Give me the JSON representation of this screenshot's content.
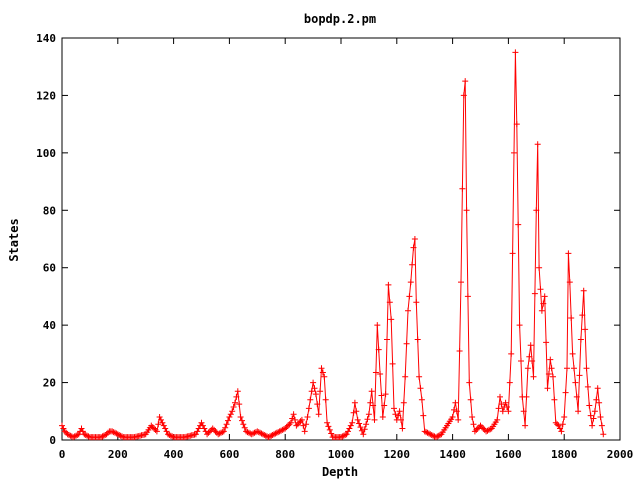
{
  "chart_data": {
    "type": "line",
    "title": "bopdp.2.pm",
    "xlabel": "Depth",
    "ylabel": "States",
    "xlim": [
      0,
      2000
    ],
    "ylim": [
      0,
      140
    ],
    "xticks": [
      "0",
      "200",
      "400",
      "600",
      "800",
      "1000",
      "1200",
      "1400",
      "1600",
      "1800",
      "2000"
    ],
    "yticks": [
      "0",
      "20",
      "40",
      "60",
      "80",
      "100",
      "120",
      "140"
    ],
    "grid": false,
    "legend": "none",
    "marker": "plus",
    "color": "#ff0000",
    "peaks": [
      [
        0,
        5
      ],
      [
        10,
        3
      ],
      [
        20,
        2
      ],
      [
        40,
        1
      ],
      [
        60,
        2
      ],
      [
        70,
        4
      ],
      [
        80,
        2
      ],
      [
        100,
        1
      ],
      [
        140,
        1
      ],
      [
        160,
        2
      ],
      [
        170,
        3
      ],
      [
        180,
        3
      ],
      [
        200,
        2
      ],
      [
        220,
        1
      ],
      [
        260,
        1
      ],
      [
        300,
        2
      ],
      [
        320,
        5
      ],
      [
        340,
        3
      ],
      [
        350,
        8
      ],
      [
        360,
        6
      ],
      [
        380,
        2
      ],
      [
        400,
        1
      ],
      [
        440,
        1
      ],
      [
        480,
        2
      ],
      [
        500,
        6
      ],
      [
        510,
        4
      ],
      [
        520,
        2
      ],
      [
        540,
        4
      ],
      [
        560,
        2
      ],
      [
        580,
        3
      ],
      [
        600,
        8
      ],
      [
        610,
        10
      ],
      [
        620,
        13
      ],
      [
        630,
        17
      ],
      [
        640,
        8
      ],
      [
        660,
        3
      ],
      [
        680,
        2
      ],
      [
        700,
        3
      ],
      [
        720,
        2
      ],
      [
        740,
        1
      ],
      [
        760,
        2
      ],
      [
        780,
        3
      ],
      [
        800,
        4
      ],
      [
        820,
        6
      ],
      [
        830,
        9
      ],
      [
        840,
        5
      ],
      [
        860,
        7
      ],
      [
        870,
        3
      ],
      [
        880,
        8
      ],
      [
        890,
        14
      ],
      [
        900,
        20
      ],
      [
        910,
        16
      ],
      [
        920,
        9
      ],
      [
        930,
        25
      ],
      [
        940,
        22
      ],
      [
        950,
        6
      ],
      [
        970,
        1
      ],
      [
        1000,
        1
      ],
      [
        1020,
        2
      ],
      [
        1040,
        6
      ],
      [
        1050,
        13
      ],
      [
        1060,
        7
      ],
      [
        1080,
        2
      ],
      [
        1100,
        9
      ],
      [
        1110,
        17
      ],
      [
        1120,
        7
      ],
      [
        1130,
        40
      ],
      [
        1140,
        23
      ],
      [
        1150,
        8
      ],
      [
        1160,
        16
      ],
      [
        1170,
        54
      ],
      [
        1180,
        42
      ],
      [
        1190,
        11
      ],
      [
        1200,
        7
      ],
      [
        1210,
        10
      ],
      [
        1220,
        4
      ],
      [
        1230,
        22
      ],
      [
        1240,
        45
      ],
      [
        1250,
        55
      ],
      [
        1260,
        67
      ],
      [
        1265,
        70
      ],
      [
        1270,
        48
      ],
      [
        1280,
        22
      ],
      [
        1290,
        14
      ],
      [
        1300,
        3
      ],
      [
        1320,
        2
      ],
      [
        1340,
        1
      ],
      [
        1360,
        2
      ],
      [
        1380,
        5
      ],
      [
        1400,
        8
      ],
      [
        1410,
        13
      ],
      [
        1420,
        7
      ],
      [
        1430,
        55
      ],
      [
        1440,
        120
      ],
      [
        1445,
        125
      ],
      [
        1450,
        80
      ],
      [
        1460,
        20
      ],
      [
        1470,
        8
      ],
      [
        1480,
        3
      ],
      [
        1500,
        5
      ],
      [
        1520,
        3
      ],
      [
        1540,
        4
      ],
      [
        1560,
        7
      ],
      [
        1570,
        15
      ],
      [
        1580,
        10
      ],
      [
        1590,
        13
      ],
      [
        1600,
        10
      ],
      [
        1610,
        30
      ],
      [
        1620,
        100
      ],
      [
        1625,
        135
      ],
      [
        1630,
        110
      ],
      [
        1640,
        40
      ],
      [
        1650,
        15
      ],
      [
        1660,
        5
      ],
      [
        1670,
        25
      ],
      [
        1680,
        33
      ],
      [
        1690,
        22
      ],
      [
        1700,
        80
      ],
      [
        1705,
        103
      ],
      [
        1710,
        60
      ],
      [
        1720,
        45
      ],
      [
        1730,
        50
      ],
      [
        1740,
        18
      ],
      [
        1750,
        28
      ],
      [
        1760,
        22
      ],
      [
        1770,
        6
      ],
      [
        1780,
        5
      ],
      [
        1790,
        3
      ],
      [
        1800,
        8
      ],
      [
        1810,
        25
      ],
      [
        1815,
        65
      ],
      [
        1820,
        55
      ],
      [
        1830,
        30
      ],
      [
        1840,
        20
      ],
      [
        1850,
        10
      ],
      [
        1860,
        35
      ],
      [
        1870,
        52
      ],
      [
        1880,
        25
      ],
      [
        1890,
        12
      ],
      [
        1900,
        5
      ],
      [
        1910,
        10
      ],
      [
        1920,
        18
      ],
      [
        1930,
        8
      ],
      [
        1940,
        2
      ]
    ]
  }
}
